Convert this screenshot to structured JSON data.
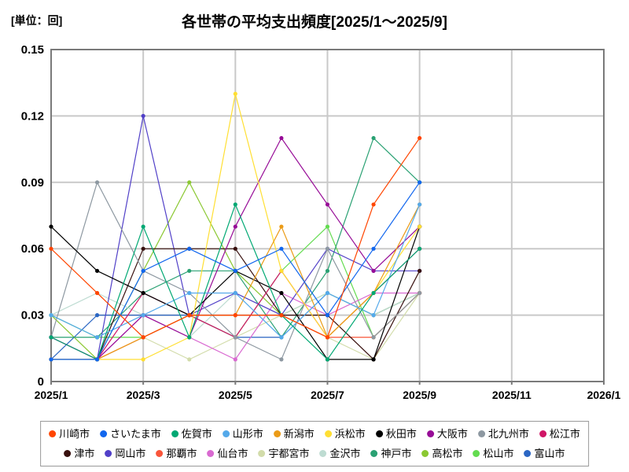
{
  "unit_label": "[単位：回]",
  "title": "各世帯の平均支出頻度[2025/1～2025/9]",
  "chart_data": {
    "type": "line",
    "title": "各世帯の平均支出頻度[2025/1～2025/9]",
    "ylabel": "[単位：回]",
    "x": [
      "2025/1",
      "2025/2",
      "2025/3",
      "2025/4",
      "2025/5",
      "2025/6",
      "2025/7",
      "2025/8",
      "2025/9"
    ],
    "x_axis": {
      "ticks": [
        "2025/1",
        "2025/3",
        "2025/5",
        "2025/7",
        "2025/9",
        "2025/11",
        "2026/1"
      ],
      "range": [
        "2025/1",
        "2026/1"
      ]
    },
    "y_axis": {
      "ticks": [
        "0",
        "0.03",
        "0.06",
        "0.09",
        "0.12",
        "0.15"
      ],
      "range": [
        0,
        0.15
      ]
    },
    "grid": true,
    "legend_position": "bottom",
    "series": [
      {
        "name": "川崎市",
        "color": "#ff4500",
        "values": [
          0.06,
          0.04,
          0.02,
          0.03,
          0.03,
          0.03,
          0.02,
          0.08,
          0.11
        ]
      },
      {
        "name": "さいたま市",
        "color": "#1166ee",
        "values": [
          0.01,
          0.01,
          0.05,
          0.06,
          0.05,
          0.06,
          0.03,
          0.06,
          0.09
        ]
      },
      {
        "name": "佐賀市",
        "color": "#00a873",
        "values": [
          0.02,
          0.01,
          0.07,
          0.02,
          0.08,
          0.03,
          0.01,
          0.04,
          0.06
        ]
      },
      {
        "name": "山形市",
        "color": "#54a9ea",
        "values": [
          0.03,
          0.02,
          0.03,
          0.04,
          0.04,
          0.02,
          0.04,
          0.03,
          0.08
        ]
      },
      {
        "name": "新潟市",
        "color": "#eb9b17",
        "values": [
          0.01,
          0.01,
          0.02,
          0.03,
          0.03,
          0.07,
          0.02,
          0.04,
          0.08
        ]
      },
      {
        "name": "浜松市",
        "color": "#ffdf33",
        "values": [
          0.01,
          0.01,
          0.01,
          0.02,
          0.13,
          0.05,
          0.02,
          0.04,
          0.07
        ]
      },
      {
        "name": "秋田市",
        "color": "#000000",
        "values": [
          0.07,
          0.05,
          0.04,
          0.03,
          0.05,
          0.04,
          0.01,
          0.01,
          0.07
        ]
      },
      {
        "name": "大阪市",
        "color": "#970c97",
        "values": [
          0.02,
          0.01,
          0.03,
          0.02,
          0.07,
          0.11,
          0.08,
          0.05,
          0.07
        ]
      },
      {
        "name": "北九州市",
        "color": "#8d98a1",
        "values": [
          0.02,
          0.09,
          0.05,
          0.04,
          0.02,
          0.01,
          0.06,
          0.02,
          0.04
        ]
      },
      {
        "name": "松江市",
        "color": "#d01566",
        "values": [
          0.02,
          0.01,
          0.04,
          0.03,
          0.02,
          0.05,
          0.02,
          0.04,
          0.06
        ]
      },
      {
        "name": "津市",
        "color": "#38100e",
        "values": [
          0.01,
          0.01,
          0.06,
          0.06,
          0.06,
          0.03,
          0.03,
          0.01,
          0.05
        ]
      },
      {
        "name": "岡山市",
        "color": "#5140c8",
        "values": [
          0.01,
          0.01,
          0.12,
          0.03,
          0.04,
          0.03,
          0.06,
          0.05,
          0.05
        ]
      },
      {
        "name": "那覇市",
        "color": "#f9553a",
        "values": [
          0.01,
          0.01,
          0.02,
          0.03,
          0.03,
          0.03,
          0.02,
          0.02,
          0.04
        ]
      },
      {
        "name": "仙台市",
        "color": "#d96ad1",
        "values": [
          0.02,
          0.01,
          0.03,
          0.02,
          0.01,
          0.04,
          0.03,
          0.04,
          0.04
        ]
      },
      {
        "name": "宇都宮市",
        "color": "#d2dcaa",
        "values": [
          0.01,
          0.01,
          0.02,
          0.01,
          0.02,
          0.03,
          0.02,
          0.01,
          0.04
        ]
      },
      {
        "name": "金沢市",
        "color": "#bedcd2",
        "values": [
          0.03,
          0.04,
          0.03,
          0.02,
          0.04,
          0.03,
          0.04,
          0.03,
          0.04
        ]
      },
      {
        "name": "神戸市",
        "color": "#2aa173",
        "values": [
          0.02,
          0.02,
          0.04,
          0.05,
          0.05,
          0.02,
          0.05,
          0.11,
          0.09
        ]
      },
      {
        "name": "高松市",
        "color": "#8bc832",
        "values": [
          0.03,
          0.01,
          0.05,
          0.09,
          0.05,
          0.03,
          0.04,
          0.03,
          0.04
        ]
      },
      {
        "name": "松山市",
        "color": "#63dc50",
        "values": [
          0.03,
          0.02,
          0.02,
          0.03,
          0.02,
          0.05,
          0.07,
          0.02,
          0.04
        ]
      },
      {
        "name": "富山市",
        "color": "#2b66c3",
        "values": [
          0.01,
          0.03,
          0.03,
          0.03,
          0.02,
          0.02,
          0.04,
          0.03,
          0.04
        ]
      }
    ]
  },
  "style": {
    "frame_color": "#7a7a7a",
    "grid_color": "#c9c9c9",
    "text_color": "#000000"
  }
}
